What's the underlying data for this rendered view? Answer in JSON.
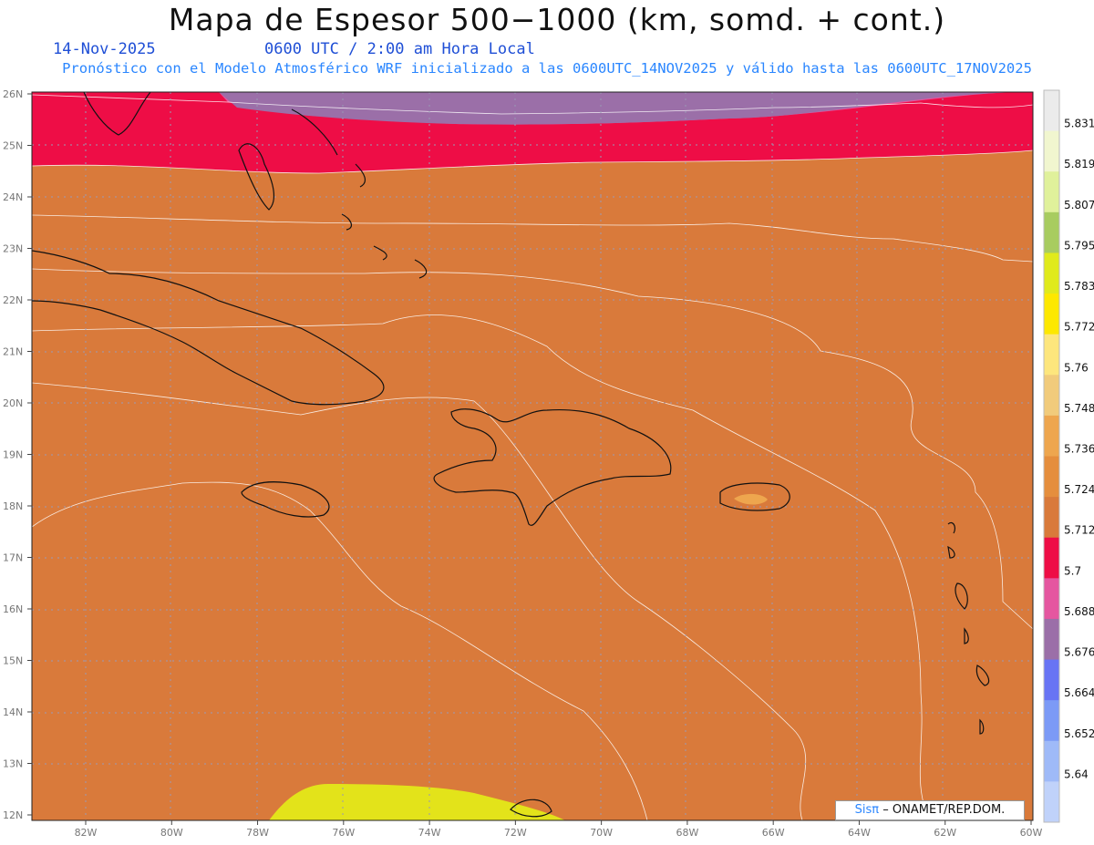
{
  "header": {
    "title": "Mapa de Espesor 500−1000 (km, somd. + cont.)",
    "date": "14-Nov-2025",
    "time": "0600 UTC / 2:00 am Hora Local",
    "subtitle": "Pronóstico con el Modelo Atmosférico WRF inicializado a las 0600UTC_14NOV2025 y válido hasta las  0600UTC_17NOV2025"
  },
  "map": {
    "lat_labels": [
      "26N",
      "25N",
      "24N",
      "23N",
      "22N",
      "21N",
      "20N",
      "19N",
      "18N",
      "17N",
      "16N",
      "15N",
      "14N",
      "13N",
      "12N"
    ],
    "lon_labels": [
      "82W",
      "80W",
      "78W",
      "76W",
      "74W",
      "72W",
      "70W",
      "68W",
      "66W",
      "64W",
      "62W",
      "60W"
    ],
    "colors": {
      "purple": "#9b6fa8",
      "pink": "#e556a0",
      "red": "#ee0d46",
      "dark_orange": "#d97a3b",
      "orange": "#e58e3d",
      "light_orange": "#eea64e",
      "tan": "#f1cb7b",
      "light_yellow": "#fde67d",
      "yellow": "#fde800",
      "lime": "#e3e31a"
    }
  },
  "colorbar": {
    "labels": [
      "5.831",
      "5.819",
      "5.807",
      "5.795",
      "5.783",
      "5.772",
      "5.76",
      "5.748",
      "5.736",
      "5.724",
      "5.712",
      "5.7",
      "5.688",
      "5.676",
      "5.664",
      "5.652",
      "5.64"
    ],
    "colors": [
      "#ebebeb",
      "#f1f6cf",
      "#e0f19b",
      "#a8cc60",
      "#e0ea1c",
      "#fde800",
      "#fde67d",
      "#f1cb7b",
      "#eea64e",
      "#e58e3d",
      "#d97a3b",
      "#ee0d46",
      "#e556a0",
      "#9b6fa8",
      "#6874f4",
      "#7c9af6",
      "#9fbaf8",
      "#c0d2fa"
    ]
  },
  "credit": {
    "brand": "Sisπ",
    "text": "– ONAMET/REP.DOM."
  }
}
